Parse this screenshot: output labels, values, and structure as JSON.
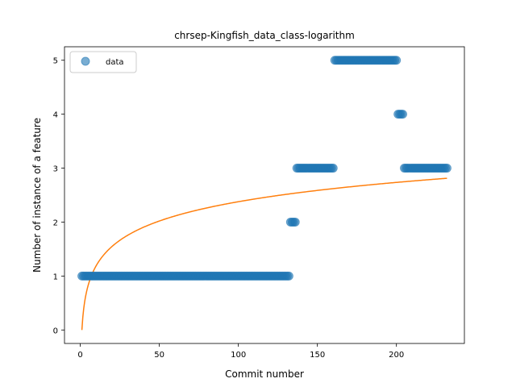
{
  "chart_data": {
    "type": "scatter",
    "title": "chrsep-Kingfish_data_class-logarithm",
    "xlabel": "Commit number",
    "ylabel": "Number of instance of a feature",
    "xlim": [
      -10,
      243
    ],
    "ylim": [
      -0.25,
      5.25
    ],
    "xticks": [
      0,
      50,
      100,
      150,
      200
    ],
    "yticks": [
      0,
      1,
      2,
      3,
      4,
      5
    ],
    "grid": false,
    "legend": {
      "placement": "top-left",
      "entries": [
        "data"
      ]
    },
    "colors": {
      "data": "#1f77b4",
      "fit": "#ff7f0e"
    },
    "series": [
      {
        "name": "data",
        "kind": "scatter",
        "segments": [
          {
            "x_from": 1,
            "x_to": 132,
            "y": 1
          },
          {
            "x_from": 133,
            "x_to": 136,
            "y": 2
          },
          {
            "x_from": 137,
            "x_to": 160,
            "y": 3
          },
          {
            "x_from": 161,
            "x_to": 200,
            "y": 5
          },
          {
            "x_from": 201,
            "x_to": 204,
            "y": 4
          },
          {
            "x_from": 205,
            "x_to": 232,
            "y": 3
          }
        ]
      },
      {
        "kind": "line",
        "function": "logarithmic",
        "a": 0.5163,
        "b": 0,
        "x_from": 1,
        "x_to": 232
      }
    ]
  }
}
